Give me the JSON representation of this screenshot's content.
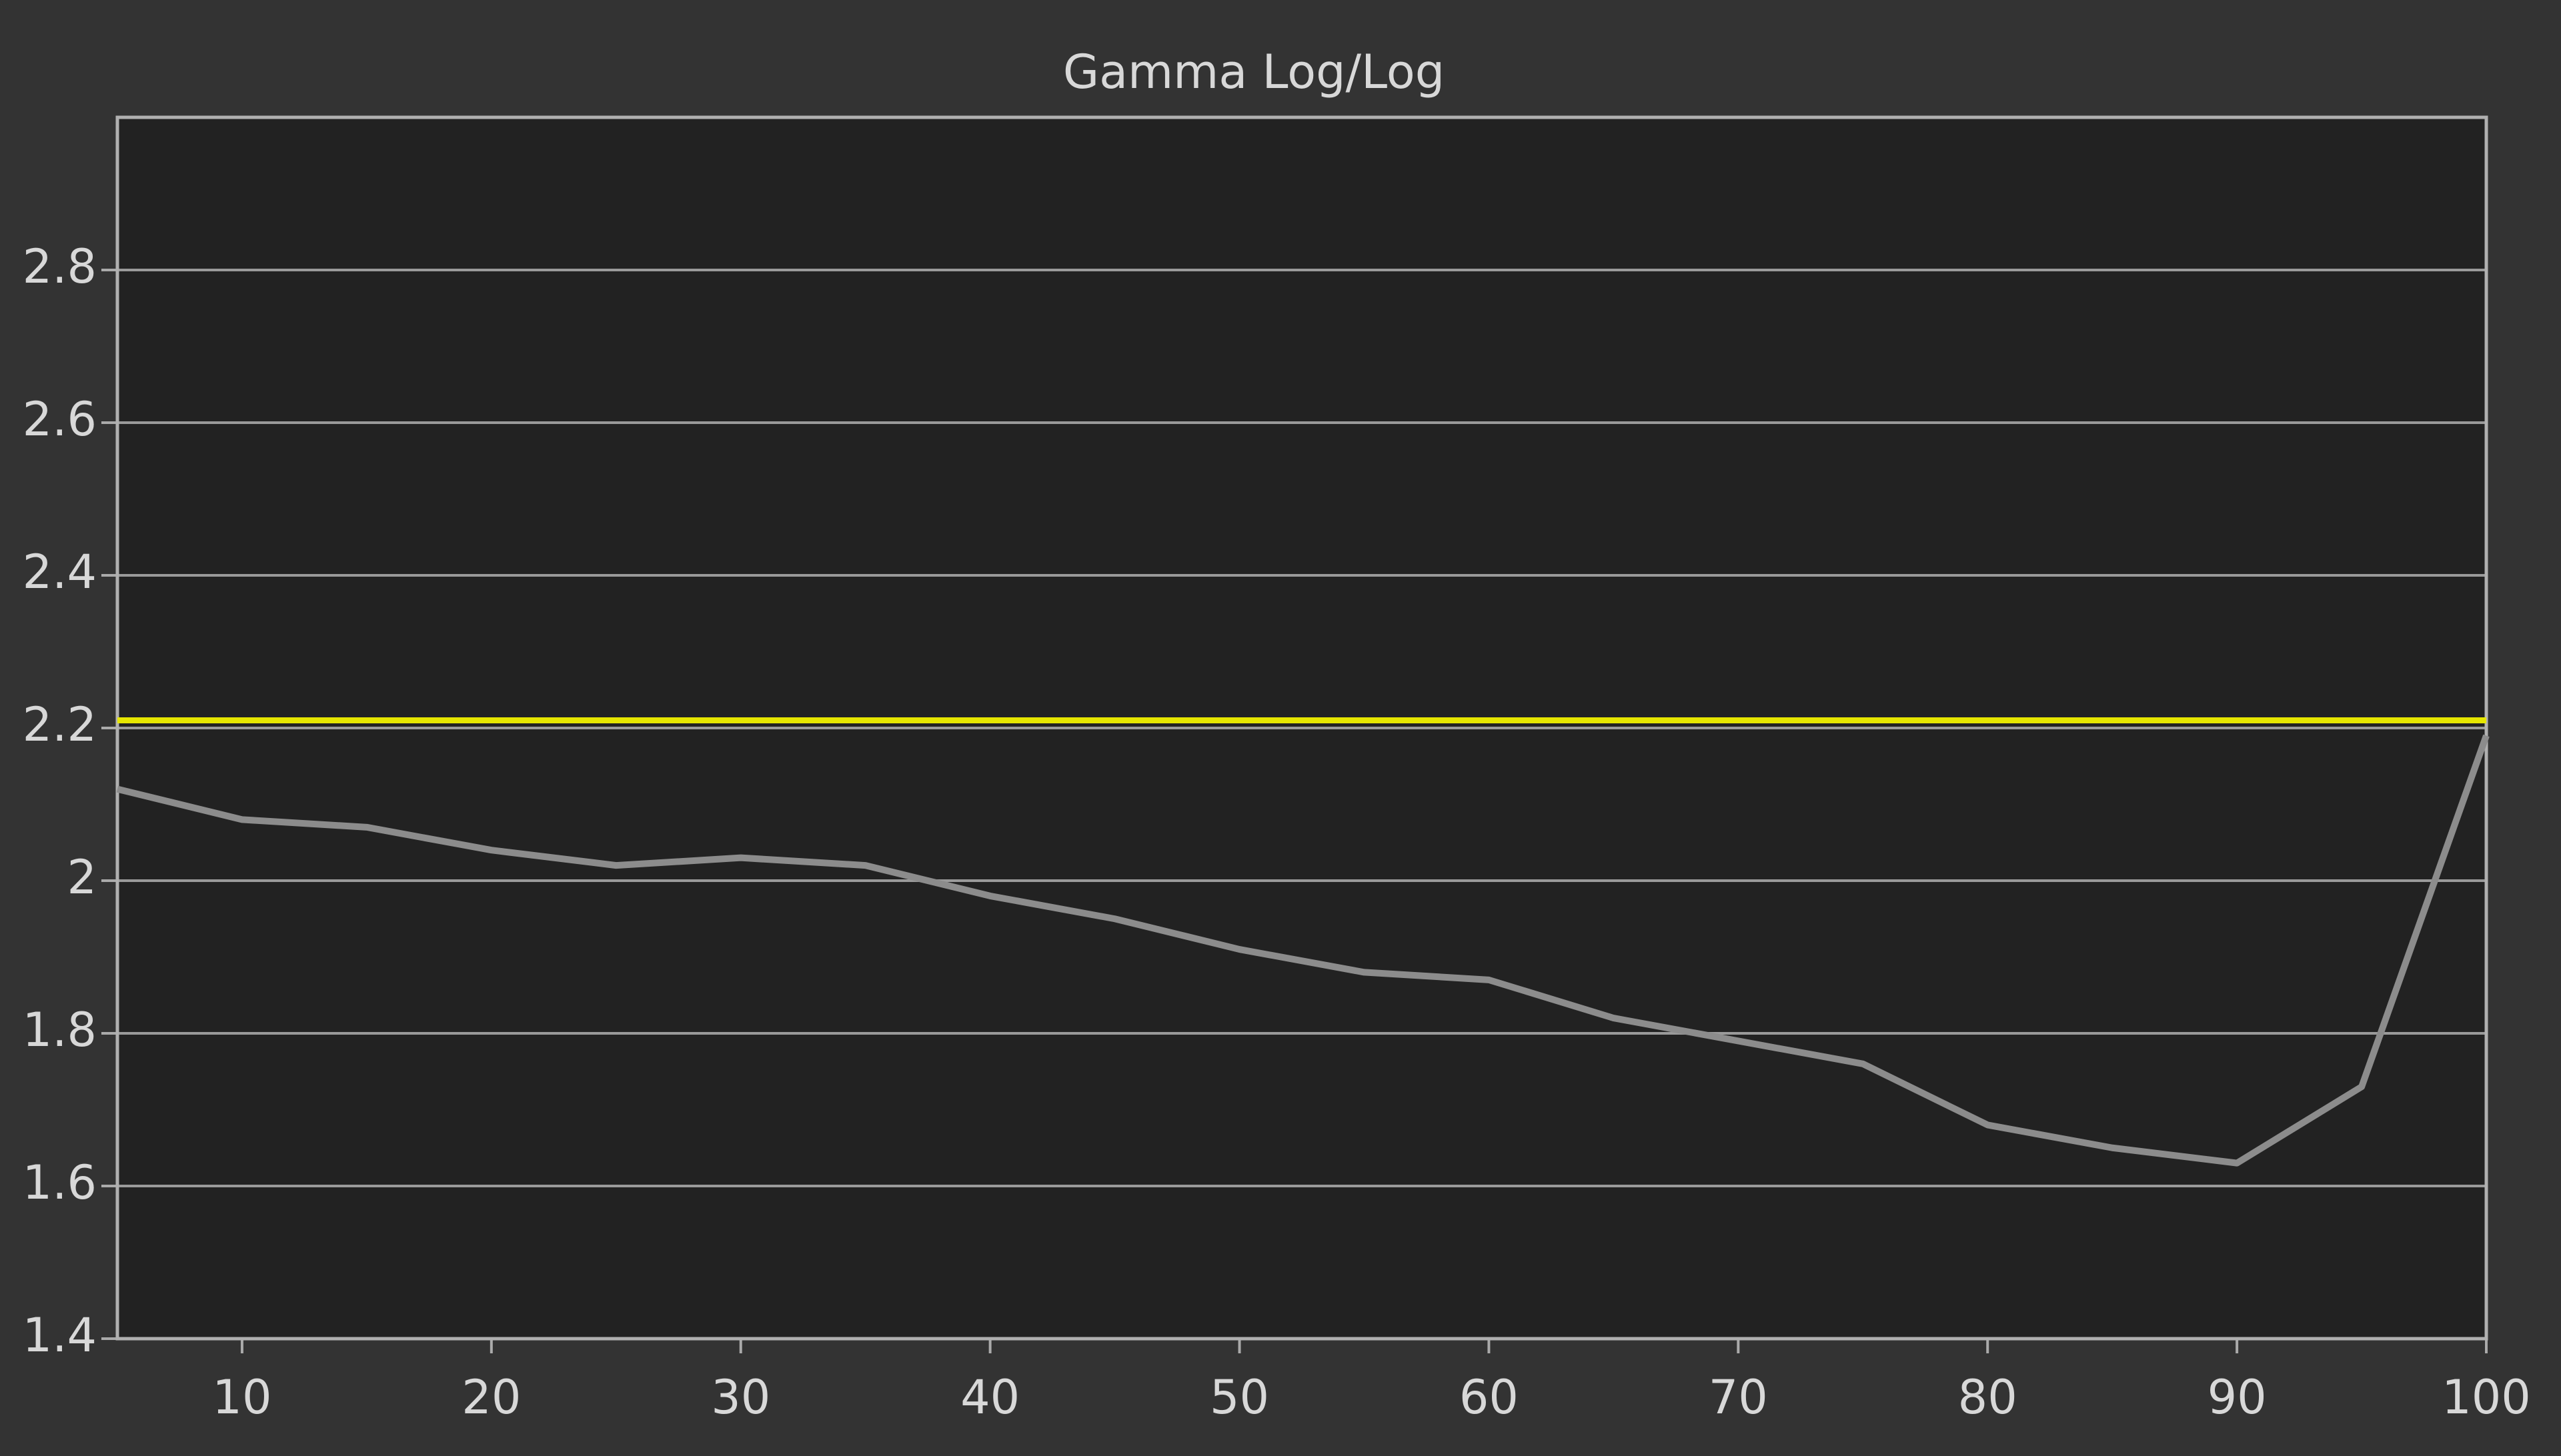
{
  "chart_data": {
    "type": "line",
    "title": "Gamma Log/Log",
    "x": [
      5,
      10,
      15,
      20,
      25,
      30,
      35,
      40,
      45,
      50,
      55,
      60,
      65,
      70,
      75,
      80,
      85,
      90,
      95,
      100
    ],
    "series": [
      {
        "color": "#8c8c8c",
        "values": [
          2.12,
          2.08,
          2.07,
          2.04,
          2.02,
          2.03,
          2.02,
          1.98,
          1.95,
          1.91,
          1.88,
          1.87,
          1.82,
          1.79,
          1.76,
          1.68,
          1.65,
          1.63,
          1.73,
          2.19
        ]
      }
    ],
    "reference_line": {
      "value": 2.21,
      "color": "#e6e600"
    },
    "xlim": [
      5,
      100
    ],
    "xticks": [
      10,
      20,
      30,
      40,
      50,
      60,
      70,
      80,
      90,
      100
    ],
    "ylim": [
      1.4,
      3.0
    ],
    "yticks": [
      1.4,
      1.6,
      1.8,
      2,
      2.2,
      2.4,
      2.6,
      2.8
    ],
    "grid": true
  }
}
